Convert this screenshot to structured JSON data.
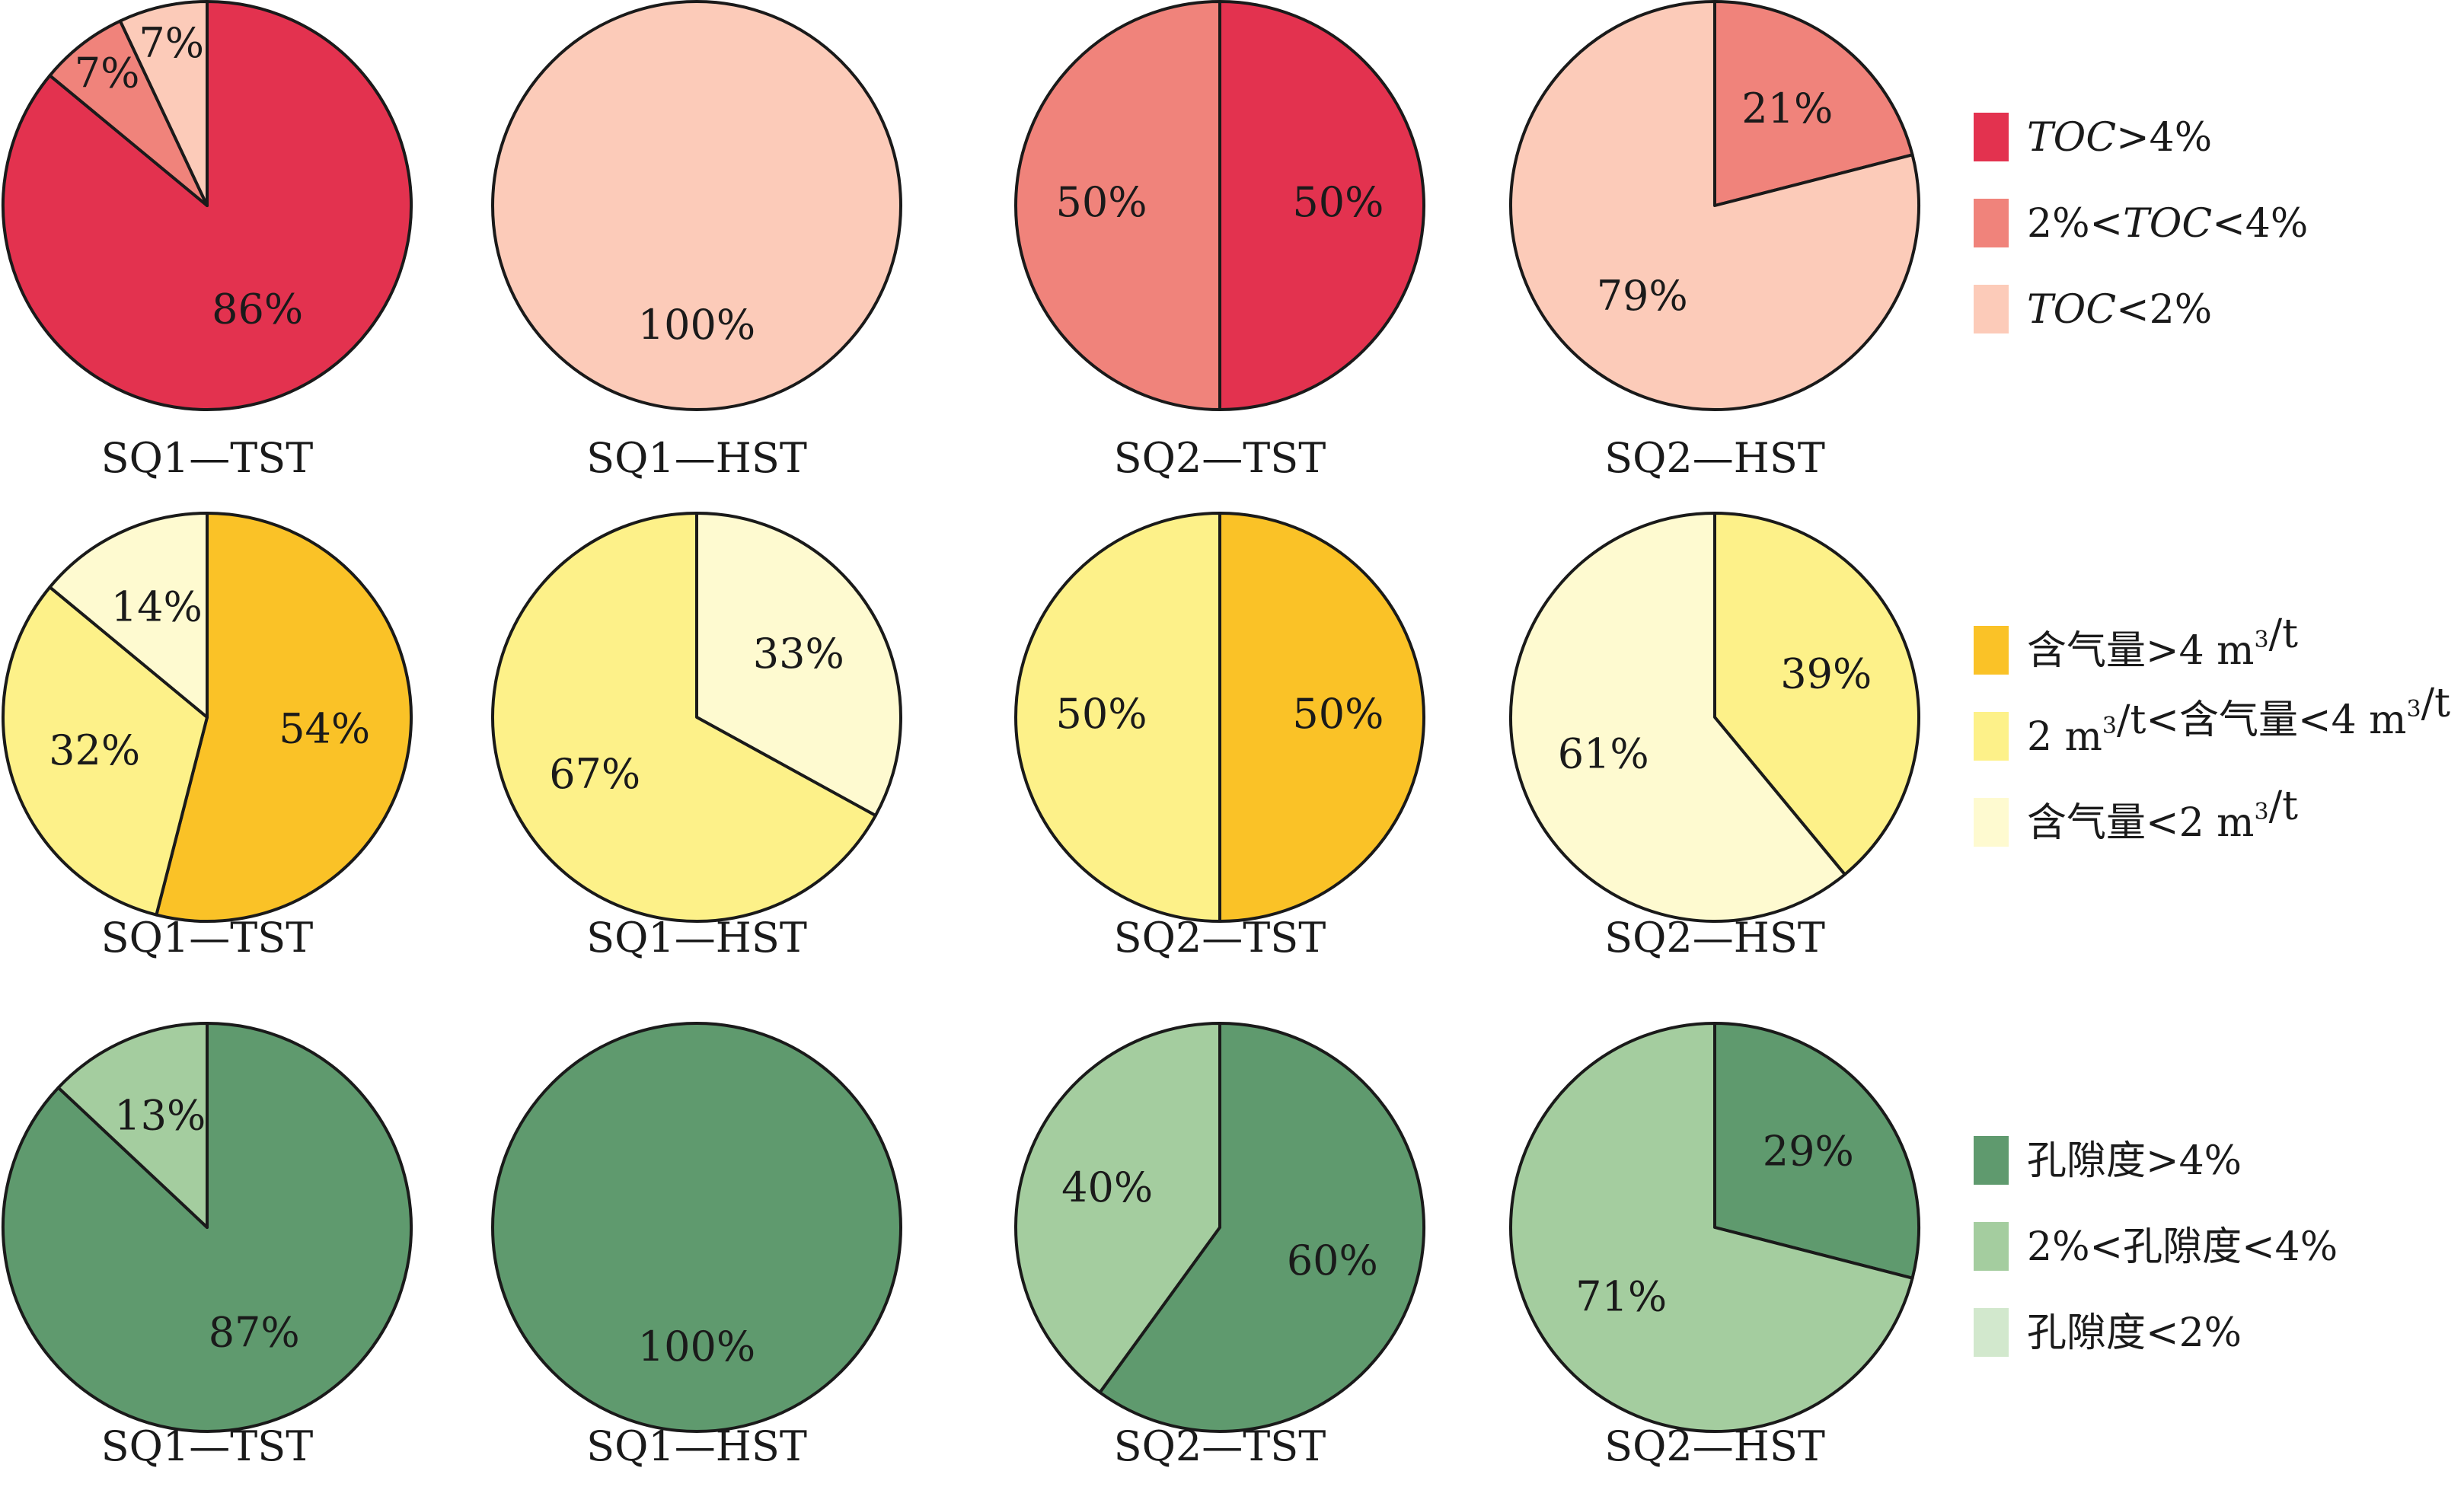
{
  "colors": {
    "toc_high": "#e3324f",
    "toc_mid": "#f0837b",
    "toc_low": "#fccbb9",
    "gas_high": "#fac227",
    "gas_mid": "#fdf189",
    "gas_low": "#fefad0",
    "por_high": "#5f9a6e",
    "por_mid": "#a4cd9f",
    "por_low": "#d2e8cd",
    "outline": "#1a1a1a"
  },
  "chart_data": [
    {
      "type": "pie",
      "group": "TOC",
      "legend_position": "right",
      "legend": [
        {
          "key": "toc_high",
          "color": "#e3324f",
          "parts": [
            {
              "t": "TOC",
              "i": true
            },
            {
              "t": ">4%"
            }
          ]
        },
        {
          "key": "toc_mid",
          "color": "#f0837b",
          "parts": [
            {
              "t": "2%<"
            },
            {
              "t": "TOC",
              "i": true
            },
            {
              "t": "<4%"
            }
          ]
        },
        {
          "key": "toc_low",
          "color": "#fccbb9",
          "parts": [
            {
              "t": "TOC",
              "i": true
            },
            {
              "t": "<2%"
            }
          ]
        }
      ],
      "pies": [
        {
          "name": "SQ1—TST",
          "slices": [
            {
              "key": "toc_high",
              "value": 86,
              "label": "86%"
            },
            {
              "key": "toc_mid",
              "value": 7,
              "label": "7%"
            },
            {
              "key": "toc_low",
              "value": 7,
              "label": "7%"
            }
          ]
        },
        {
          "name": "SQ1—HST",
          "slices": [
            {
              "key": "toc_low",
              "value": 100,
              "label": "100%"
            }
          ]
        },
        {
          "name": "SQ2—TST",
          "slices": [
            {
              "key": "toc_high",
              "value": 50,
              "label": "50%"
            },
            {
              "key": "toc_mid",
              "value": 50,
              "label": "50%"
            }
          ]
        },
        {
          "name": "SQ2—HST",
          "slices": [
            {
              "key": "toc_mid",
              "value": 21,
              "label": "21%"
            },
            {
              "key": "toc_low",
              "value": 79,
              "label": "79%"
            }
          ]
        }
      ]
    },
    {
      "type": "pie",
      "group": "含气量",
      "legend_position": "right",
      "legend": [
        {
          "key": "gas_high",
          "color": "#fac227",
          "parts": [
            {
              "t": "含气量>4 m"
            },
            {
              "t": "3",
              "sup": true
            },
            {
              "t": "/t"
            }
          ]
        },
        {
          "key": "gas_mid",
          "color": "#fdf189",
          "parts": [
            {
              "t": "2 m"
            },
            {
              "t": "3",
              "sup": true
            },
            {
              "t": "/t<含气量<4 m"
            },
            {
              "t": "3",
              "sup": true
            },
            {
              "t": "/t"
            }
          ]
        },
        {
          "key": "gas_low",
          "color": "#fefad0",
          "parts": [
            {
              "t": "含气量<2 m"
            },
            {
              "t": "3",
              "sup": true
            },
            {
              "t": "/t"
            }
          ]
        }
      ],
      "pies": [
        {
          "name": "SQ1—TST",
          "slices": [
            {
              "key": "gas_high",
              "value": 54,
              "label": "54%"
            },
            {
              "key": "gas_mid",
              "value": 32,
              "label": "32%"
            },
            {
              "key": "gas_low",
              "value": 14,
              "label": "14%"
            }
          ]
        },
        {
          "name": "SQ1—HST",
          "slices": [
            {
              "key": "gas_low",
              "value": 33,
              "label": "33%"
            },
            {
              "key": "gas_mid",
              "value": 67,
              "label": "67%"
            }
          ]
        },
        {
          "name": "SQ2—TST",
          "slices": [
            {
              "key": "gas_high",
              "value": 50,
              "label": "50%"
            },
            {
              "key": "gas_mid",
              "value": 50,
              "label": "50%"
            }
          ]
        },
        {
          "name": "SQ2—HST",
          "slices": [
            {
              "key": "gas_mid",
              "value": 39,
              "label": "39%"
            },
            {
              "key": "gas_low",
              "value": 61,
              "label": "61%"
            }
          ]
        }
      ]
    },
    {
      "type": "pie",
      "group": "孔隙度",
      "legend_position": "right",
      "legend": [
        {
          "key": "por_high",
          "color": "#5f9a6e",
          "parts": [
            {
              "t": "孔隙度>4%"
            }
          ]
        },
        {
          "key": "por_mid",
          "color": "#a4cd9f",
          "parts": [
            {
              "t": "2%<孔隙度<4%"
            }
          ]
        },
        {
          "key": "por_low",
          "color": "#d2e8cd",
          "parts": [
            {
              "t": "孔隙度<2%"
            }
          ]
        }
      ],
      "pies": [
        {
          "name": "SQ1—TST",
          "slices": [
            {
              "key": "por_high",
              "value": 87,
              "label": "87%"
            },
            {
              "key": "por_mid",
              "value": 13,
              "label": "13%"
            }
          ]
        },
        {
          "name": "SQ1—HST",
          "slices": [
            {
              "key": "por_high",
              "value": 100,
              "label": "100%"
            }
          ]
        },
        {
          "name": "SQ2—TST",
          "slices": [
            {
              "key": "por_high",
              "value": 60,
              "label": "60%"
            },
            {
              "key": "por_mid",
              "value": 40,
              "label": "40%"
            }
          ]
        },
        {
          "name": "SQ2—HST",
          "slices": [
            {
              "key": "por_high",
              "value": 29,
              "label": "29%"
            },
            {
              "key": "por_mid",
              "value": 71,
              "label": "71%"
            }
          ]
        }
      ]
    }
  ]
}
